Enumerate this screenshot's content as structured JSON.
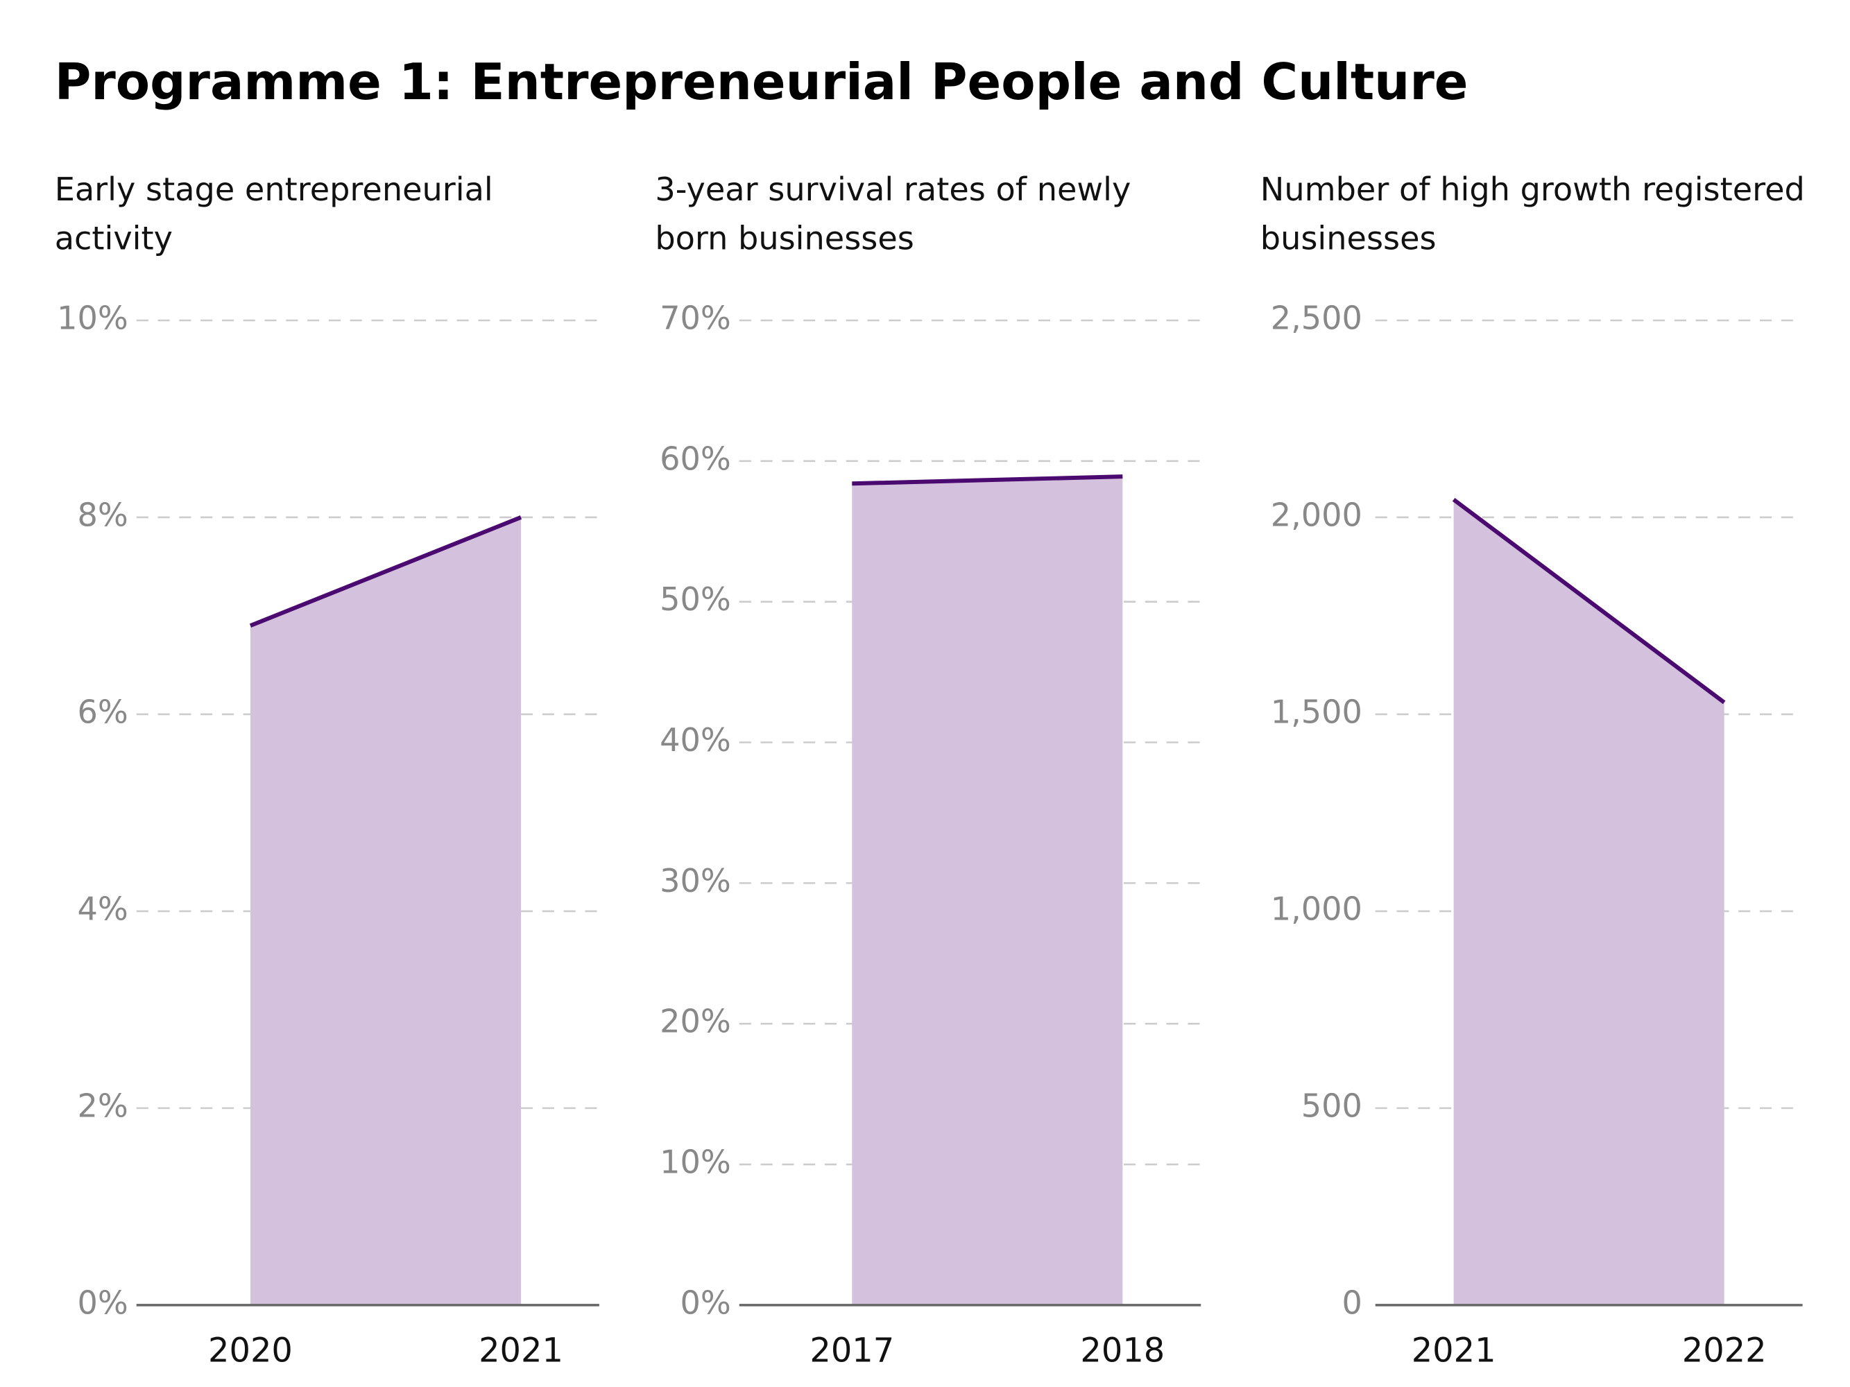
{
  "title": "Programme 1: Entrepreneurial People and Culture",
  "chart_data": [
    {
      "type": "area",
      "title": "Early stage entrepreneurial activity",
      "categories": [
        "2020",
        "2021"
      ],
      "values": [
        6.9,
        8.0
      ],
      "color": "#4b0a70",
      "fill": "#d4c1de",
      "ylim": [
        0,
        10
      ],
      "yticks": [
        {
          "value": 0,
          "label": "0%"
        },
        {
          "value": 2,
          "label": "2%"
        },
        {
          "value": 4,
          "label": "4%"
        },
        {
          "value": 6,
          "label": "6%"
        },
        {
          "value": 8,
          "label": "8%"
        },
        {
          "value": 10,
          "label": "10%"
        }
      ],
      "grid": true
    },
    {
      "type": "area",
      "title": "3-year survival rates of newly born businesses",
      "categories": [
        "2017",
        "2018"
      ],
      "values": [
        58.4,
        58.9
      ],
      "color": "#4b0a70",
      "fill": "#d4c1de",
      "ylim": [
        0,
        70
      ],
      "yticks": [
        {
          "value": 0,
          "label": "0%"
        },
        {
          "value": 10,
          "label": "10%"
        },
        {
          "value": 20,
          "label": "20%"
        },
        {
          "value": 30,
          "label": "30%"
        },
        {
          "value": 40,
          "label": "40%"
        },
        {
          "value": 50,
          "label": "50%"
        },
        {
          "value": 60,
          "label": "60%"
        },
        {
          "value": 70,
          "label": "70%"
        }
      ],
      "grid": true
    },
    {
      "type": "area",
      "title": "Number of high growth registered businesses",
      "categories": [
        "2021",
        "2022"
      ],
      "values": [
        2045,
        1530
      ],
      "color": "#4b0a70",
      "fill": "#d4c1de",
      "ylim": [
        0,
        2500
      ],
      "yticks": [
        0,
        500,
        {
          "value": 1000,
          "label": "1,000"
        },
        {
          "value": 1500,
          "label": "1,500"
        },
        {
          "value": 2000,
          "label": "2,000"
        },
        {
          "value": 2500,
          "label": "2,500"
        }
      ],
      "grid": true
    }
  ]
}
